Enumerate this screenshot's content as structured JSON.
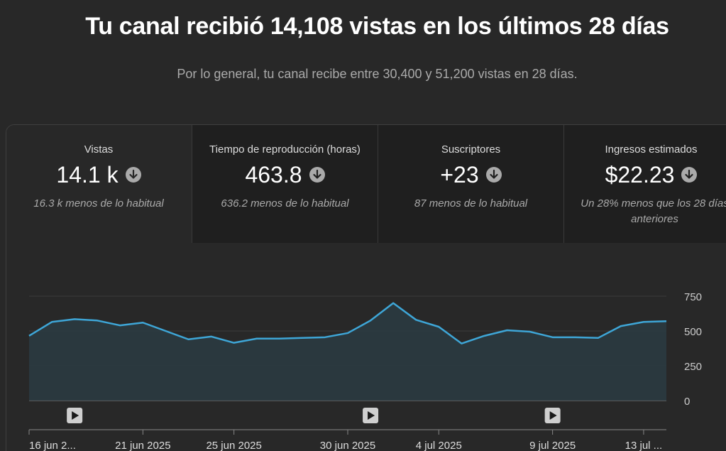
{
  "header": {
    "title": "Tu canal recibió 14,108 vistas en los últimos 28 días",
    "subtitle": "Por lo general, tu canal recibe entre 30,400 y 51,200 vistas en 28 días."
  },
  "metrics": [
    {
      "label": "Vistas",
      "value": "14.1 k",
      "note": "16.3 k menos de lo habitual"
    },
    {
      "label": "Tiempo de reproducción (horas)",
      "value": "463.8",
      "note": "636.2 menos de lo habitual"
    },
    {
      "label": "Suscriptores",
      "value": "+23",
      "note": "87 menos de lo habitual"
    },
    {
      "label": "Ingresos estimados",
      "value": "$22.23",
      "note": "Un 28% menos que los 28 días anteriores"
    }
  ],
  "icons": {
    "trend": "arrow-down-circle-icon",
    "video_marker": "play-icon"
  },
  "colors": {
    "line": "#3ea6d7",
    "area": "#2a3a40",
    "background": "#282828"
  },
  "chart_data": {
    "type": "area",
    "x": [
      "16 jun 2025",
      "17 jun 2025",
      "18 jun 2025",
      "19 jun 2025",
      "20 jun 2025",
      "21 jun 2025",
      "22 jun 2025",
      "23 jun 2025",
      "24 jun 2025",
      "25 jun 2025",
      "26 jun 2025",
      "27 jun 2025",
      "28 jun 2025",
      "29 jun 2025",
      "30 jun 2025",
      "1 jul 2025",
      "2 jul 2025",
      "3 jul 2025",
      "4 jul 2025",
      "5 jul 2025",
      "6 jul 2025",
      "7 jul 2025",
      "8 jul 2025",
      "9 jul 2025",
      "10 jul 2025",
      "11 jul 2025",
      "12 jul 2025",
      "13 jul 2025",
      "14 jul 2025"
    ],
    "values": [
      465,
      565,
      585,
      575,
      540,
      560,
      500,
      440,
      460,
      415,
      445,
      445,
      450,
      455,
      485,
      575,
      700,
      580,
      530,
      410,
      465,
      505,
      495,
      455,
      455,
      450,
      535,
      565,
      570
    ],
    "ylim": [
      0,
      750
    ],
    "yticks": [
      "750",
      "500",
      "250",
      "0"
    ],
    "ytick_values": [
      750,
      500,
      250,
      0
    ],
    "xtick_labels": [
      {
        "label": "16 jun 2...",
        "index": 0
      },
      {
        "label": "21 jun 2025",
        "index": 5
      },
      {
        "label": "25 jun 2025",
        "index": 9
      },
      {
        "label": "30 jun 2025",
        "index": 14
      },
      {
        "label": "4 jul 2025",
        "index": 18
      },
      {
        "label": "9 jul 2025",
        "index": 23
      },
      {
        "label": "13 jul ...",
        "index": 27
      }
    ],
    "video_markers": [
      2,
      15,
      23
    ],
    "grid": true
  }
}
